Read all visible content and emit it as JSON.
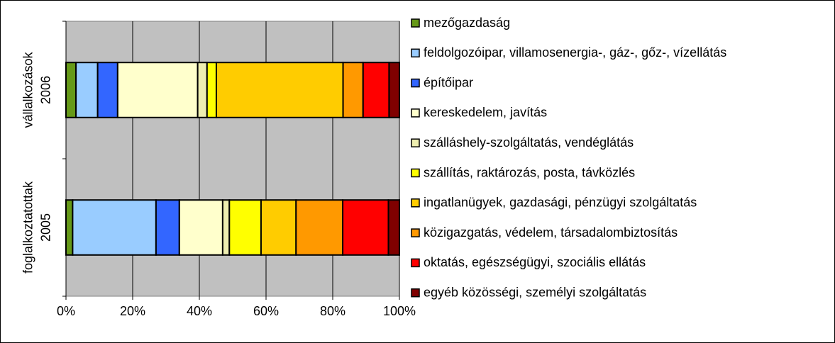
{
  "chart_data": {
    "type": "bar",
    "orientation": "horizontal",
    "stacked": "percent",
    "categories": [
      [
        "vállalkozások",
        "2006"
      ],
      [
        "foglalkoztatottak",
        "2005"
      ]
    ],
    "series": [
      {
        "name": "mezőgazdaság",
        "color": "#669918",
        "values": [
          3,
          2
        ]
      },
      {
        "name": "feldolgozóipar, villamosenergia-, gáz-, gőz-, vízellátás",
        "color": "#99ccff",
        "values": [
          6.5,
          25
        ]
      },
      {
        "name": "építőipar",
        "color": "#3366ff",
        "values": [
          6,
          7
        ]
      },
      {
        "name": "kereskedelem, javítás",
        "color": "#ffffcc",
        "values": [
          24,
          13
        ]
      },
      {
        "name": "szálláshely-szolgáltatás, vendéglátás",
        "color": "#eeeeb0",
        "values": [
          2.8,
          2
        ]
      },
      {
        "name": "szállítás, raktározás, posta, távközlés",
        "color": "#ffff00",
        "values": [
          2.8,
          9.5
        ]
      },
      {
        "name": "ingatlanügyek, gazdasági, pénzügyi szolgáltatás",
        "color": "#ffcc00",
        "values": [
          38,
          10.5
        ]
      },
      {
        "name": "közigazgatás, védelem, társadalombiztosítás",
        "color": "#ff9900",
        "values": [
          6,
          14
        ]
      },
      {
        "name": "oktatás, egészségügyi, szociális ellátás",
        "color": "#ff0000",
        "values": [
          7.8,
          13.7
        ]
      },
      {
        "name": "egyéb közösségi, személyi szolgáltatás",
        "color": "#800000",
        "values": [
          3.1,
          3.3
        ]
      }
    ],
    "xlim": [
      0,
      100
    ],
    "xticks": [
      {
        "value": 0,
        "label": "0%"
      },
      {
        "value": 20,
        "label": "20%"
      },
      {
        "value": 40,
        "label": "40%"
      },
      {
        "value": 60,
        "label": "60%"
      },
      {
        "value": 80,
        "label": "80%"
      },
      {
        "value": 100,
        "label": "100%"
      }
    ],
    "grid": true,
    "legend": "right"
  }
}
